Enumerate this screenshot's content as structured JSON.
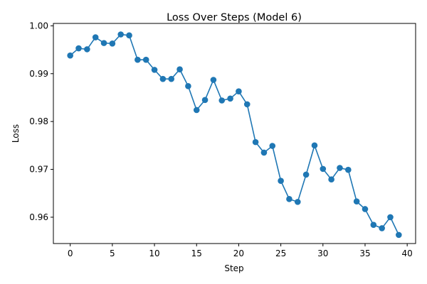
{
  "chart_data": {
    "type": "line",
    "title": "Loss Over Steps (Model 6)",
    "xlabel": "Step",
    "ylabel": "Loss",
    "xlim": [
      -2,
      41
    ],
    "ylim": [
      0.9545,
      1.0005
    ],
    "xticks": [
      0,
      5,
      10,
      15,
      20,
      25,
      30,
      35,
      40
    ],
    "yticks": [
      0.96,
      0.97,
      0.98,
      0.99,
      1.0
    ],
    "xtick_labels": [
      "0",
      "5",
      "10",
      "15",
      "20",
      "25",
      "30",
      "35",
      "40"
    ],
    "ytick_labels": [
      "0.96",
      "0.97",
      "0.98",
      "0.99",
      "1.00"
    ],
    "grid": false,
    "color": "#1f77b4",
    "marker": "circle",
    "series": [
      {
        "x": [
          0,
          1,
          2,
          3,
          4,
          5,
          6,
          7,
          8,
          9,
          10,
          11,
          12,
          13,
          14,
          15,
          16,
          17,
          18,
          19,
          20,
          21,
          22,
          23,
          24,
          25,
          26,
          27,
          28,
          29,
          30,
          31,
          32,
          33,
          34,
          35,
          36,
          37,
          38,
          39
        ],
        "values": [
          0.9938,
          0.9953,
          0.9951,
          0.9976,
          0.9964,
          0.9963,
          0.9982,
          0.998,
          0.9929,
          0.9929,
          0.9908,
          0.9889,
          0.9889,
          0.9909,
          0.9874,
          0.9824,
          0.9845,
          0.9887,
          0.9844,
          0.9848,
          0.9863,
          0.9836,
          0.9757,
          0.9735,
          0.9749,
          0.9676,
          0.9638,
          0.9632,
          0.9689,
          0.975,
          0.9701,
          0.9679,
          0.9703,
          0.9699,
          0.9633,
          0.9617,
          0.9584,
          0.9577,
          0.96,
          0.9563
        ]
      }
    ]
  }
}
